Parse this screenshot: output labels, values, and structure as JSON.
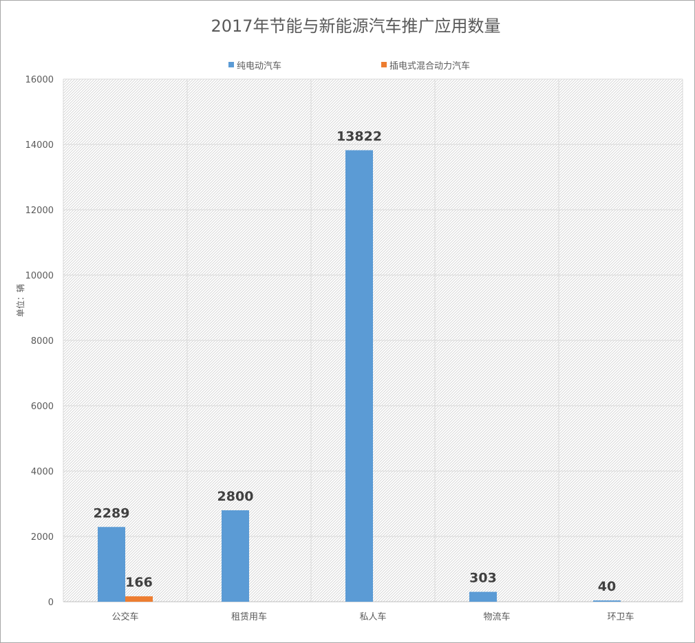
{
  "chart_data": {
    "type": "bar",
    "title": "2017年节能与新能源汽车推广应用数量",
    "ylabel": "单位：辆",
    "xlabel": "",
    "ylim": [
      0,
      16000
    ],
    "yticks": [
      0,
      2000,
      4000,
      6000,
      8000,
      10000,
      12000,
      14000,
      16000
    ],
    "categories": [
      "公交车",
      "租赁用车",
      "私人车",
      "物流车",
      "环卫车"
    ],
    "series": [
      {
        "name": "纯电动汽车",
        "color": "#5b9bd5",
        "values": [
          2289,
          2800,
          13822,
          303,
          40
        ]
      },
      {
        "name": "插电式混合动力汽车",
        "color": "#ed7d31",
        "values": [
          166,
          null,
          null,
          null,
          null
        ]
      }
    ],
    "grid": true,
    "legend_position": "top"
  }
}
